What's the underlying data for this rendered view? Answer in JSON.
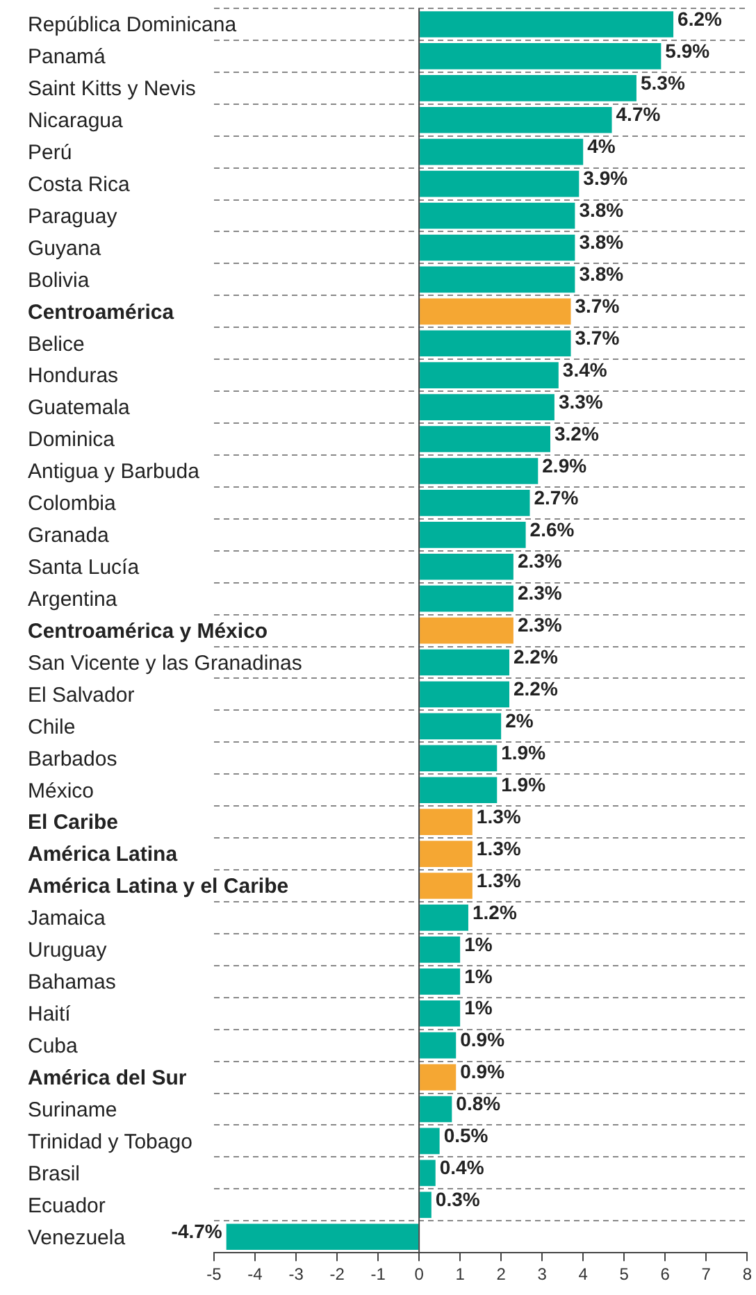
{
  "chart_data": {
    "type": "bar",
    "orientation": "horizontal",
    "categories": [
      "República Dominicana",
      "Panamá",
      "Saint Kitts y Nevis",
      "Nicaragua",
      "Perú",
      "Costa Rica",
      "Paraguay",
      "Guyana",
      "Bolivia",
      "Centroamérica",
      "Belice",
      "Honduras",
      "Guatemala",
      "Dominica",
      "Antigua y Barbuda",
      "Colombia",
      "Granada",
      "Santa Lucía",
      "Argentina",
      "Centroamérica y México",
      "San Vicente y las Granadinas",
      "El Salvador",
      "Chile",
      "Barbados",
      "México",
      "El Caribe",
      "América Latina",
      "América Latina y el Caribe",
      "Jamaica",
      "Uruguay",
      "Bahamas",
      "Haití",
      "Cuba",
      "América del Sur",
      "Suriname",
      "Trinidad y Tobago",
      "Brasil",
      "Ecuador",
      "Venezuela"
    ],
    "values": [
      6.2,
      5.9,
      5.3,
      4.7,
      4,
      3.9,
      3.8,
      3.8,
      3.8,
      3.7,
      3.7,
      3.4,
      3.3,
      3.2,
      2.9,
      2.7,
      2.6,
      2.3,
      2.3,
      2.3,
      2.2,
      2.2,
      2,
      1.9,
      1.9,
      1.3,
      1.3,
      1.3,
      1.2,
      1,
      1,
      1,
      0.9,
      0.9,
      0.8,
      0.5,
      0.4,
      0.3,
      -4.7
    ],
    "value_labels": [
      "6.2%",
      "5.9%",
      "5.3%",
      "4.7%",
      "4%",
      "3.9%",
      "3.8%",
      "3.8%",
      "3.8%",
      "3.7%",
      "3.7%",
      "3.4%",
      "3.3%",
      "3.2%",
      "2.9%",
      "2.7%",
      "2.6%",
      "2.3%",
      "2.3%",
      "2.3%",
      "2.2%",
      "2.2%",
      "2%",
      "1.9%",
      "1.9%",
      "1.3%",
      "1.3%",
      "1.3%",
      "1.2%",
      "1%",
      "1%",
      "1%",
      "0.9%",
      "0.9%",
      "0.8%",
      "0.5%",
      "0.4%",
      "0.3%",
      "-4.7%"
    ],
    "colors": [
      "#00b09b",
      "#00b09b",
      "#00b09b",
      "#00b09b",
      "#00b09b",
      "#00b09b",
      "#00b09b",
      "#00b09b",
      "#00b09b",
      "#f5a733",
      "#00b09b",
      "#00b09b",
      "#00b09b",
      "#00b09b",
      "#00b09b",
      "#00b09b",
      "#00b09b",
      "#00b09b",
      "#00b09b",
      "#f5a733",
      "#00b09b",
      "#00b09b",
      "#00b09b",
      "#00b09b",
      "#00b09b",
      "#f5a733",
      "#f5a733",
      "#f5a733",
      "#00b09b",
      "#00b09b",
      "#00b09b",
      "#00b09b",
      "#00b09b",
      "#f5a733",
      "#00b09b",
      "#00b09b",
      "#00b09b",
      "#00b09b",
      "#00b09b"
    ],
    "xlim": [
      -5,
      8
    ],
    "xticks": [
      -5,
      -4,
      -3,
      -2,
      -1,
      0,
      1,
      2,
      3,
      4,
      5,
      6,
      7,
      8
    ],
    "grid": "y",
    "legend": false
  }
}
